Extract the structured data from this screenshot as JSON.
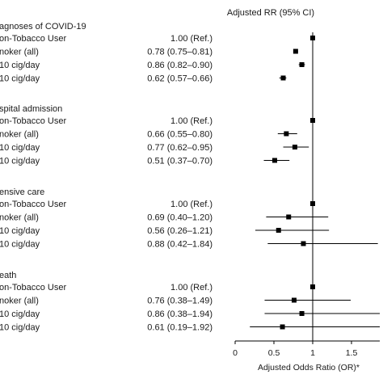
{
  "chart_data": {
    "type": "forest",
    "column_header": "Adjusted RR (95% CI)",
    "xlabel": "Adjusted Odds Ratio (OR)*",
    "xlim": [
      0,
      1.8
    ],
    "x_ticks": [
      "0",
      "0.5",
      "1",
      "1.5"
    ],
    "reference_line": 1,
    "groups": [
      {
        "title": "agnoses of COVID-19",
        "rows": [
          {
            "label": "on-Tobacco User",
            "text": "1.00 (Ref.)",
            "or": 1.0,
            "lo": null,
            "hi": null
          },
          {
            "label": "noker (all)",
            "text": "0.78 (0.75–0.81)",
            "or": 0.78,
            "lo": 0.75,
            "hi": 0.81
          },
          {
            "label": "10 cig/day",
            "text": "0.86 (0.82–0.90)",
            "or": 0.86,
            "lo": 0.82,
            "hi": 0.9
          },
          {
            "label": "10 cig/day",
            "text": "0.62 (0.57–0.66)",
            "or": 0.62,
            "lo": 0.57,
            "hi": 0.66
          }
        ]
      },
      {
        "title": "spital admission",
        "rows": [
          {
            "label": "on-Tobacco User",
            "text": "1.00 (Ref.)",
            "or": 1.0,
            "lo": null,
            "hi": null
          },
          {
            "label": "noker (all)",
            "text": "0.66 (0.55–0.80)",
            "or": 0.66,
            "lo": 0.55,
            "hi": 0.8
          },
          {
            "label": "10 cig/day",
            "text": "0.77 (0.62–0.95)",
            "or": 0.77,
            "lo": 0.62,
            "hi": 0.95
          },
          {
            "label": "10 cig/day",
            "text": "0.51 (0.37–0.70)",
            "or": 0.51,
            "lo": 0.37,
            "hi": 0.7
          }
        ]
      },
      {
        "title": "ensive care",
        "rows": [
          {
            "label": "on-Tobacco User",
            "text": "1.00 (Ref.)",
            "or": 1.0,
            "lo": null,
            "hi": null
          },
          {
            "label": "noker (all)",
            "text": "0.69 (0.40–1.20)",
            "or": 0.69,
            "lo": 0.4,
            "hi": 1.2
          },
          {
            "label": "10 cig/day",
            "text": "0.56 (0.26–1.21)",
            "or": 0.56,
            "lo": 0.26,
            "hi": 1.21
          },
          {
            "label": "10 cig/day",
            "text": "0.88 (0.42–1.84)",
            "or": 0.88,
            "lo": 0.42,
            "hi": 1.84
          }
        ]
      },
      {
        "title": "eath",
        "rows": [
          {
            "label": "on-Tobacco User",
            "text": "1.00 (Ref.)",
            "or": 1.0,
            "lo": null,
            "hi": null
          },
          {
            "label": "noker (all)",
            "text": "0.76 (0.38–1.49)",
            "or": 0.76,
            "lo": 0.38,
            "hi": 1.49
          },
          {
            "label": "10 cig/day",
            "text": "0.86 (0.38–1.94)",
            "or": 0.86,
            "lo": 0.38,
            "hi": 1.94
          },
          {
            "label": "10 cig/day",
            "text": "0.61 (0.19–1.92)",
            "or": 0.61,
            "lo": 0.19,
            "hi": 1.92
          }
        ]
      }
    ]
  }
}
